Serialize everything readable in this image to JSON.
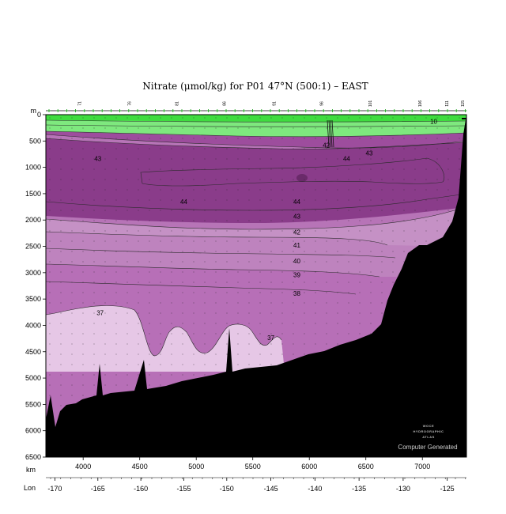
{
  "chart_data": {
    "type": "contour-section",
    "title": "Nitrate (μmol/kg) for P01 47°N (500:1) – EAST",
    "y_unit_label": "m",
    "x_label_km": "km",
    "x_label_lon": "Lon",
    "xlim_km": [
      3670,
      7390
    ],
    "ylim_depth": [
      6500,
      0
    ],
    "y_ticks": [
      0,
      500,
      1000,
      1500,
      2000,
      2500,
      3000,
      3500,
      4000,
      4500,
      5000,
      5500,
      6000,
      6500
    ],
    "km_ticks": [
      4000,
      4500,
      5000,
      5500,
      6000,
      6500,
      7000
    ],
    "lon_ticks": [
      {
        "km": 3750,
        "label": "-170"
      },
      {
        "km": 4130,
        "label": "-165"
      },
      {
        "km": 4510,
        "label": "-160"
      },
      {
        "km": 4890,
        "label": "-155"
      },
      {
        "km": 5270,
        "label": "-150"
      },
      {
        "km": 5660,
        "label": "-145"
      },
      {
        "km": 6050,
        "label": "-140"
      },
      {
        "km": 6440,
        "label": "-135"
      },
      {
        "km": 6830,
        "label": "-130"
      },
      {
        "km": 7220,
        "label": "-125"
      }
    ],
    "station_labels": [
      {
        "km": 3980,
        "label": "71"
      },
      {
        "km": 4420,
        "label": "76"
      },
      {
        "km": 4840,
        "label": "81"
      },
      {
        "km": 5260,
        "label": "86"
      },
      {
        "km": 5700,
        "label": "91"
      },
      {
        "km": 6120,
        "label": "96"
      },
      {
        "km": 6550,
        "label": "101"
      },
      {
        "km": 6990,
        "label": "106"
      },
      {
        "km": 7230,
        "label": "111"
      },
      {
        "km": 7370,
        "label": "115"
      }
    ],
    "contour_labels": [
      {
        "value": "10",
        "km": 7100,
        "depth": 130
      },
      {
        "value": "43",
        "km": 4130,
        "depth": 830
      },
      {
        "value": "42",
        "km": 6150,
        "depth": 580
      },
      {
        "value": "43",
        "km": 6530,
        "depth": 730
      },
      {
        "value": "44",
        "km": 6330,
        "depth": 830
      },
      {
        "value": "44",
        "km": 4890,
        "depth": 1650
      },
      {
        "value": "44",
        "km": 5890,
        "depth": 1650
      },
      {
        "value": "43",
        "km": 5890,
        "depth": 1930
      },
      {
        "value": "42",
        "km": 5890,
        "depth": 2230
      },
      {
        "value": "41",
        "km": 5890,
        "depth": 2480
      },
      {
        "value": "40",
        "km": 5890,
        "depth": 2780
      },
      {
        "value": "39",
        "km": 5890,
        "depth": 3040
      },
      {
        "value": "38",
        "km": 5890,
        "depth": 3390
      },
      {
        "value": "37",
        "km": 4150,
        "depth": 3760
      },
      {
        "value": "37",
        "km": 5660,
        "depth": 4230
      }
    ],
    "color_bands": [
      {
        "name": "surface <40",
        "color": "#7ee87e"
      },
      {
        "name": ">=44",
        "color": "#8a3c8a"
      },
      {
        "name": "43-44",
        "color": "#9d4d9d"
      },
      {
        "name": "42-43",
        "color": "#b774b7"
      },
      {
        "name": "41-42",
        "color": "#c591c5"
      },
      {
        "name": "39-41",
        "color": "#be83be"
      },
      {
        "name": "37-39",
        "color": "#b76fb7"
      },
      {
        "name": "<37",
        "color": "#e6c7e6"
      },
      {
        "name": "bottom",
        "color": "#000000"
      }
    ],
    "watermark_lines": [
      "WOCE",
      "HYDROGRAPHIC",
      "ATLAS"
    ],
    "credit": "Computer Generated"
  }
}
